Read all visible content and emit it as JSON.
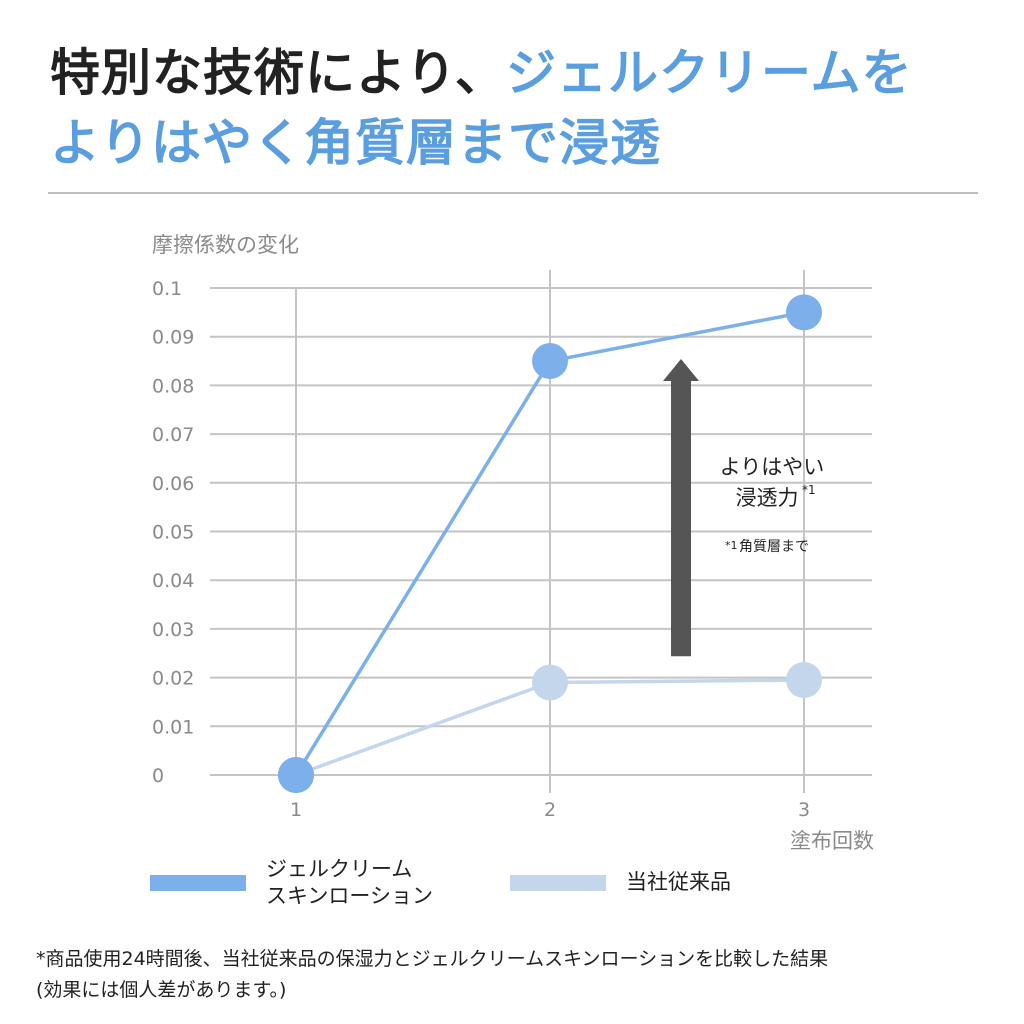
{
  "headline": {
    "part1": "特別な技術により、",
    "part2": "ジェルクリームを",
    "part3": "よりはやく角質層まで浸透",
    "dark_color": "#222222",
    "accent_color": "#5b9ee0"
  },
  "chart_data": {
    "type": "line",
    "ylabel": "摩擦係数の変化",
    "xlabel": "塗布回数",
    "categories": [
      "1",
      "2",
      "3"
    ],
    "ylim": [
      0,
      0.1
    ],
    "yticks": [
      "0",
      "0.01",
      "0.02",
      "0.03",
      "0.04",
      "0.05",
      "0.06",
      "0.07",
      "0.08",
      "0.09",
      "0.1"
    ],
    "grid": true,
    "legend_position": "bottom",
    "series": [
      {
        "name": "ジェルクリーム\nスキンローション",
        "values": [
          0,
          0.085,
          0.095
        ],
        "color": "#7db0ea"
      },
      {
        "name": "当社従来品",
        "values": [
          0,
          0.019,
          0.0195
        ],
        "color": "#c3d6ec"
      }
    ],
    "annotation": {
      "arrow_from": 0.025,
      "arrow_to": 0.085,
      "line1": "よりはやい",
      "line2": "浸透力",
      "line2_mark": "*1",
      "note_mark": "*1",
      "note": "角質層まで",
      "arrow_color": "#555555"
    }
  },
  "footnote": {
    "line1": "*商品使用24時間後、当社従来品の保湿力とジェルクリームスキンローションを比較した結果",
    "line2": "(効果には個人差があります。)"
  }
}
